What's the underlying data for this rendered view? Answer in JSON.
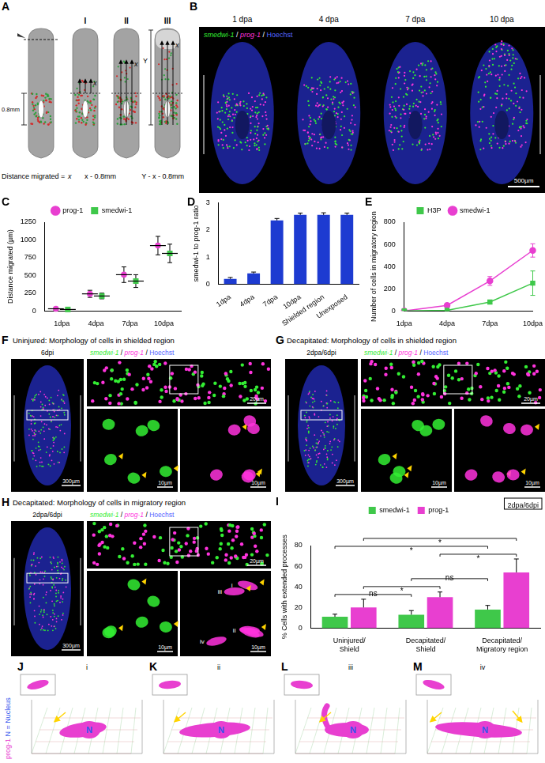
{
  "panels": {
    "A": {
      "label": "A",
      "band_label": "0.8mm",
      "stages": [
        "I",
        "II",
        "III"
      ],
      "caption": "Distance migrated =",
      "formulas": [
        "x",
        "x - 0.8mm",
        "Y - x - 0.8mm"
      ],
      "arrow_labels": [
        "x",
        "Y"
      ]
    },
    "B": {
      "label": "B",
      "stains": [
        {
          "name": "smedwi-1",
          "color": "#33ee33"
        },
        {
          "name": "prog-1",
          "color": "#ff33dd"
        },
        {
          "name": "Hoechst",
          "color": "#5566ff"
        }
      ],
      "separator": " / ",
      "timepoints": [
        "1 dpa",
        "4 dpa",
        "7 dpa",
        "10 dpa"
      ],
      "scale_bar": "500µm"
    },
    "F": {
      "label": "F",
      "title": "Uninjured: Morphology of cells in shielded region",
      "timepoint": "6dpi",
      "scale_bars": [
        "300µm",
        "20µm",
        "10µm",
        "10µm"
      ],
      "cell_labels": []
    },
    "G": {
      "label": "G",
      "title": "Decapitated: Morphology of cells in shielded region",
      "timepoint": "2dpa/6dpi",
      "scale_bars": [
        "300µm",
        "20µm",
        "10µm",
        "10µm"
      ],
      "cell_labels": []
    },
    "H": {
      "label": "H",
      "title": "Decapitated: Morphology of cells in migratory region",
      "timepoint": "2dpa/6dpi",
      "scale_bars": [
        "300µm",
        "20µm",
        "10µm",
        "10µm"
      ],
      "cell_labels": [
        "i",
        "ii",
        "iii",
        "iv"
      ]
    },
    "JM": {
      "side_label": [
        {
          "name": "prog-1",
          "color": "#e83fd0"
        },
        {
          "name": " N = Nucleus",
          "color": "#3355ee"
        }
      ],
      "items": [
        {
          "label": "J",
          "cell": "i",
          "nucleus": "N"
        },
        {
          "label": "K",
          "cell": "ii",
          "nucleus": "N"
        },
        {
          "label": "L",
          "cell": "iii",
          "nucleus": "N"
        },
        {
          "label": "M",
          "cell": "iv",
          "nucleus": "N"
        }
      ]
    }
  },
  "chart_data": [
    {
      "label": "C",
      "type": "scatter",
      "categories": [
        "1dpa",
        "4dpa",
        "7dpa",
        "10dpa"
      ],
      "y_label": "Distance migrated (µm)",
      "series": [
        {
          "name": "prog-1",
          "color": "#e83fd0",
          "marker": "circle",
          "values": [
            30,
            240,
            510,
            920
          ],
          "errors": [
            20,
            50,
            110,
            130
          ]
        },
        {
          "name": "smedwi-1",
          "color": "#3fc84a",
          "marker": "square",
          "values": [
            20,
            210,
            420,
            810
          ],
          "errors": [
            15,
            40,
            90,
            130
          ]
        }
      ],
      "ylim": [
        0,
        1250
      ],
      "yticks": [
        0,
        250,
        500,
        750,
        1000,
        1250
      ],
      "legend": "top",
      "grid": false
    },
    {
      "label": "D",
      "type": "bar",
      "categories": [
        "1dpa",
        "4dpa",
        "7dpa",
        "10dpa",
        "Shielded region",
        "Unexposed"
      ],
      "y_label": "smedwi-1 to prog-1 ratio",
      "values": [
        0.2,
        0.4,
        2.35,
        2.55,
        2.55,
        2.55
      ],
      "errors": [
        0.05,
        0.05,
        0.07,
        0.07,
        0.08,
        0.07
      ],
      "color": "#1d3bd1",
      "ylim": [
        0,
        3
      ],
      "yticks": [
        0,
        1,
        2,
        3
      ],
      "grid": false
    },
    {
      "label": "E",
      "type": "line",
      "categories": [
        "1dpa",
        "4dpa",
        "7dpa",
        "10dpa"
      ],
      "y_label": "Number of cells in migratory region",
      "series": [
        {
          "name": "H3P",
          "color": "#3fc84a",
          "marker": "square",
          "values": [
            0,
            5,
            80,
            250
          ],
          "errors": [
            0,
            3,
            15,
            110
          ]
        },
        {
          "name": "smedwi-1",
          "color": "#e83fd0",
          "marker": "circle",
          "values": [
            0,
            50,
            270,
            545
          ],
          "errors": [
            0,
            10,
            40,
            60
          ]
        }
      ],
      "ylim": [
        0,
        800
      ],
      "yticks": [
        0,
        200,
        400,
        600,
        800
      ],
      "legend": "top",
      "grid": false
    },
    {
      "label": "I",
      "type": "bar",
      "categories": [
        "Uninjured/Shield",
        "Decapitated/Shield",
        "Decapitated/Migratory region"
      ],
      "y_label": "% Cells with extended processes",
      "series": [
        {
          "name": "smedwi-1",
          "color": "#3fc84a",
          "values": [
            11,
            13,
            18
          ],
          "errors": [
            2.5,
            4,
            4
          ]
        },
        {
          "name": "prog-1",
          "color": "#e83fd0",
          "values": [
            20,
            30,
            54
          ],
          "errors": [
            8,
            5,
            13
          ]
        }
      ],
      "ylim": [
        0,
        80
      ],
      "yticks": [
        0,
        20,
        40,
        60,
        80
      ],
      "legend": "top",
      "grid": false,
      "annotation": "2dpa/6dpi",
      "comparisons": [
        {
          "from": {
            "category": "Uninjured/Shield",
            "series": "smedwi-1"
          },
          "to": {
            "category": "Decapitated/Shield",
            "series": "smedwi-1"
          },
          "label": "ns"
        },
        {
          "from": {
            "category": "Uninjured/Shield",
            "series": "prog-1"
          },
          "to": {
            "category": "Decapitated/Shield",
            "series": "prog-1"
          },
          "label": "*"
        },
        {
          "from": {
            "category": "Decapitated/Shield",
            "series": "smedwi-1"
          },
          "to": {
            "category": "Decapitated/Migratory region",
            "series": "smedwi-1"
          },
          "label": "ns"
        },
        {
          "from": {
            "category": "Decapitated/Shield",
            "series": "prog-1"
          },
          "to": {
            "category": "Decapitated/Migratory region",
            "series": "prog-1"
          },
          "label": "*"
        },
        {
          "from": {
            "category": "Uninjured/Shield",
            "series": "smedwi-1"
          },
          "to": {
            "category": "Decapitated/Migratory region",
            "series": "smedwi-1"
          },
          "label": "*"
        },
        {
          "from": {
            "category": "Uninjured/Shield",
            "series": "prog-1"
          },
          "to": {
            "category": "Decapitated/Migratory region",
            "series": "prog-1"
          },
          "label": "*"
        }
      ]
    }
  ]
}
